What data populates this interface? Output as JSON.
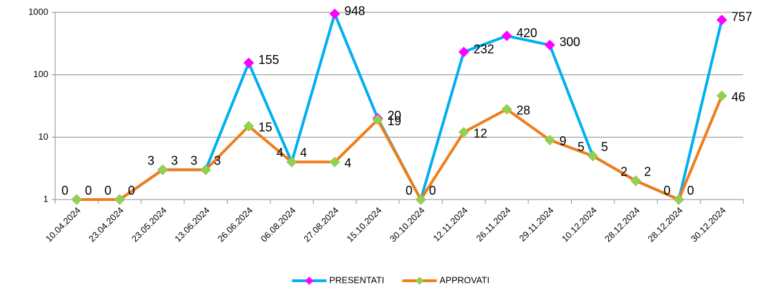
{
  "chart_data": {
    "type": "line",
    "categories": [
      "10.04.2024",
      "23.04.2024",
      "23.05.2024",
      "13.06.2024",
      "26.06.2024",
      "06.08.2024",
      "27.08.2024",
      "15.10.2024",
      "30.10.2024",
      "12.11.2024",
      "26.11.2024",
      "29.11.2024",
      "10.12.2024",
      "28.12.2024",
      "28.12.2024",
      "30.12.2024"
    ],
    "series": [
      {
        "name": "PRESENTATI",
        "color": "#00b0f0",
        "marker_color": "#ff00ff",
        "values": [
          0,
          0,
          3,
          3,
          155,
          4,
          948,
          20,
          0,
          232,
          420,
          300,
          5,
          2,
          0,
          757
        ]
      },
      {
        "name": "APPROVATI",
        "color": "#f07d19",
        "marker_color": "#92d050",
        "values": [
          0,
          0,
          3,
          3,
          15,
          4,
          4,
          19,
          0,
          12,
          28,
          9,
          5,
          2,
          0,
          46
        ]
      }
    ],
    "ylim": [
      1,
      1000
    ],
    "yticks": [
      1,
      10,
      100,
      1000
    ],
    "log_scale": true,
    "grid": true,
    "legend": "bottom"
  }
}
